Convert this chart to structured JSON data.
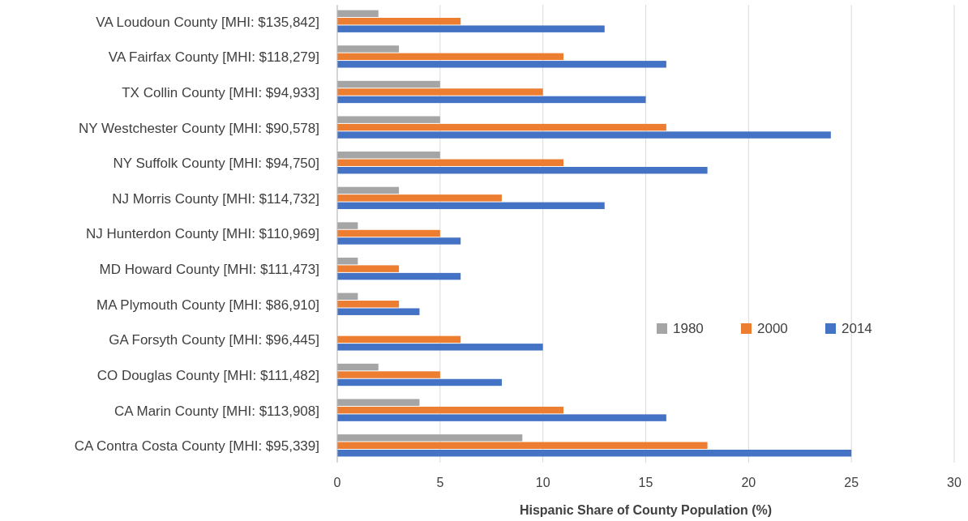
{
  "chart_data": {
    "type": "bar",
    "orientation": "horizontal",
    "xlabel": "Hispanic Share of County Population (%)",
    "categories": [
      "VA Loudoun County [MHI: $135,842]",
      "VA Fairfax County [MHI: $118,279]",
      "TX Collin County [MHI: $94,933]",
      "NY Westchester County [MHI: $90,578]",
      "NY Suffolk County [MHI: $94,750]",
      "NJ Morris County [MHI: $114,732]",
      "NJ Hunterdon County [MHI: $110,969]",
      "MD Howard County [MHI: $111,473]",
      "MA Plymouth County [MHI: $86,910]",
      "GA Forsyth County [MHI: $96,445]",
      "CO Douglas County [MHI: $111,482]",
      "CA Marin County [MHI: $113,908]",
      "CA Contra Costa County [MHI: $95,339]"
    ],
    "series": [
      {
        "name": "1980",
        "color": "#a5a5a5",
        "values": [
          2,
          3,
          5,
          5,
          5,
          3,
          1,
          1,
          1,
          0,
          2,
          4,
          9
        ]
      },
      {
        "name": "2000",
        "color": "#ed7d31",
        "values": [
          6,
          11,
          10,
          16,
          11,
          8,
          5,
          3,
          3,
          6,
          5,
          11,
          18
        ]
      },
      {
        "name": "2014",
        "color": "#4472c4",
        "values": [
          13,
          16,
          15,
          24,
          18,
          13,
          6,
          6,
          4,
          10,
          8,
          16,
          25
        ]
      }
    ],
    "xlim": [
      0,
      30
    ],
    "xticks": [
      0,
      5,
      10,
      15,
      20,
      25,
      30
    ],
    "grid": "x",
    "legend": "right"
  }
}
